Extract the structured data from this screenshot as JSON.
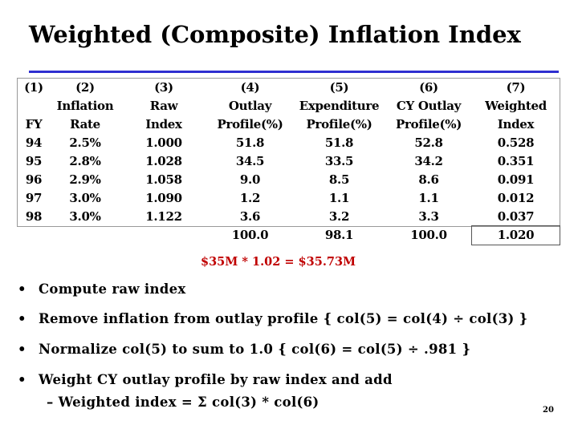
{
  "title": "Weighted (Composite) Inflation Index",
  "table": {
    "header_numbers": [
      "(1)",
      "(2)",
      "(3)",
      "(4)",
      "(5)",
      "(6)",
      "(7)"
    ],
    "header_labels": [
      [
        "FY"
      ],
      [
        "Inflation",
        "Rate"
      ],
      [
        "Raw",
        "Index"
      ],
      [
        "Outlay",
        "Profile(%)"
      ],
      [
        "Expenditure",
        "Profile(%)"
      ],
      [
        "CY Outlay",
        "Profile(%)"
      ],
      [
        "Weighted",
        "Index"
      ]
    ],
    "rows": [
      [
        "94",
        "2.5%",
        "1.000",
        "51.8",
        "51.8",
        "52.8",
        "0.528"
      ],
      [
        "95",
        "2.8%",
        "1.028",
        "34.5",
        "33.5",
        "34.2",
        "0.351"
      ],
      [
        "96",
        "2.9%",
        "1.058",
        "9.0",
        "8.5",
        "8.6",
        "0.091"
      ],
      [
        "97",
        "3.0%",
        "1.090",
        "1.2",
        "1.1",
        "1.1",
        "0.012"
      ],
      [
        "98",
        "3.0%",
        "1.122",
        "3.6",
        "3.2",
        "3.3",
        "0.037"
      ]
    ],
    "totals": [
      "100.0",
      "98.1",
      "100.0",
      "1.020"
    ]
  },
  "calculation": "$35M * 1.02 = $35.73M",
  "bullets": [
    "Compute raw index",
    "Remove inflation from outlay profile { col(5) = col(4) ÷ col(3) }",
    "Normalize col(5) to sum to 1.0 { col(6) = col(5) ÷ .981 }",
    "Weight CY outlay profile by raw index and add"
  ],
  "sub_bullet": "Weighted index = Σ col(3) * col(6)",
  "page_number": "20"
}
